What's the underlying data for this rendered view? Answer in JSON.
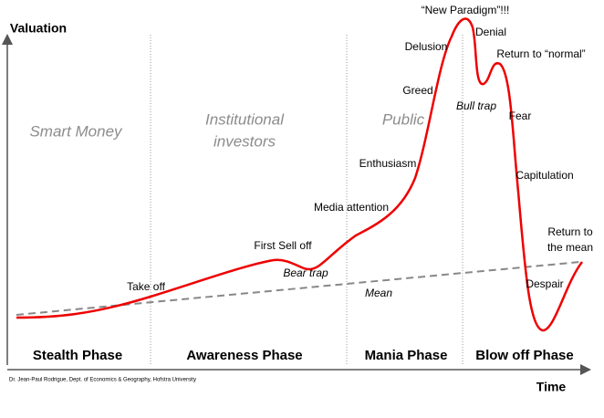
{
  "axes": {
    "y_label": "Valuation",
    "x_label": "Time"
  },
  "regions": {
    "smart_money": "Smart Money",
    "institutional": [
      "Institutional",
      "investors"
    ],
    "public": "Public"
  },
  "annotations": {
    "new_paradigm": "“New Paradigm”!!!",
    "denial": "Denial",
    "delusion": "Delusion",
    "return_normal": "Return to “normal”",
    "greed": "Greed",
    "bull_trap": "Bull trap",
    "fear": "Fear",
    "enthusiasm": "Enthusiasm",
    "capitulation": "Capitulation",
    "media_attention": "Media attention",
    "return_mean": [
      "Return to",
      "the mean"
    ],
    "first_sell_off": "First Sell off",
    "bear_trap": "Bear trap",
    "take_off": "Take off",
    "mean": "Mean",
    "despair": "Despair"
  },
  "phases": [
    "Stealth Phase",
    "Awareness Phase",
    "Mania Phase",
    "Blow off Phase"
  ],
  "credit": "Dr. Jean-Paul Rodrigue, Dept. of Economics & Geography, Hofstra University"
}
